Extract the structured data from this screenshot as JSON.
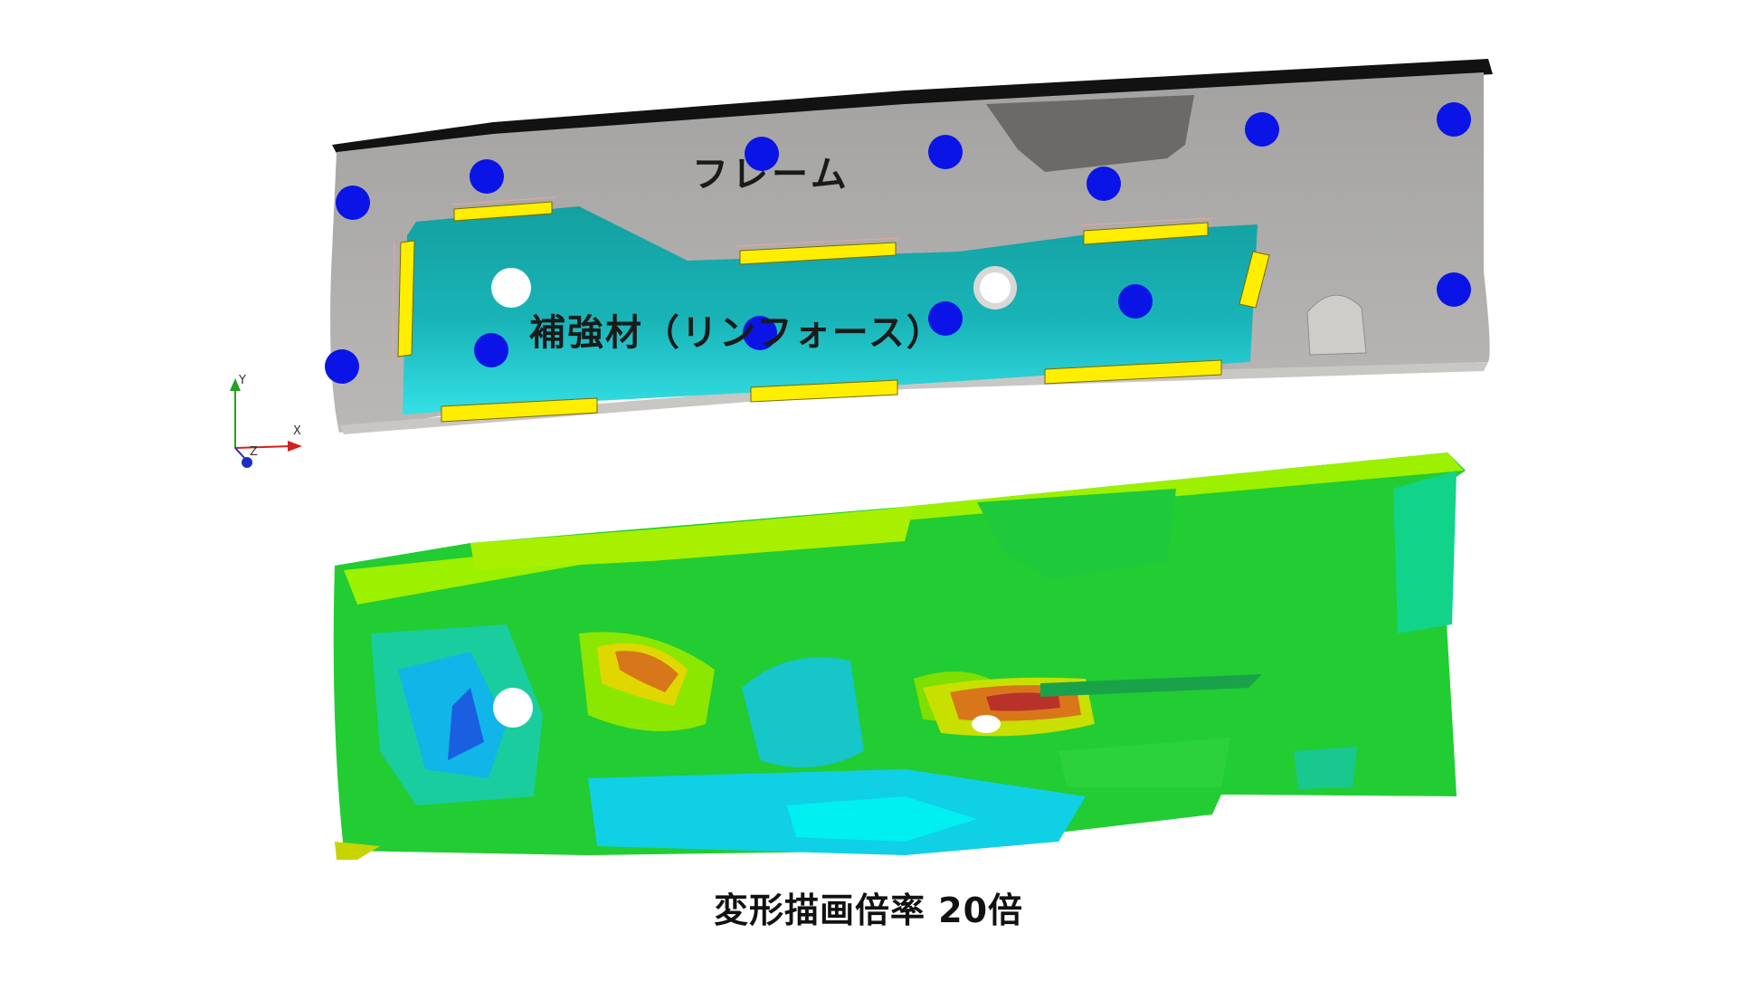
{
  "labels": {
    "frame": "フレーム",
    "reinforcement": "補強材（リンフォース）",
    "caption": "変形描画倍率 20倍"
  },
  "axes": {
    "x": "X",
    "y": "Y",
    "z": "Z"
  },
  "colors": {
    "frame_gray": "#9e9d9b",
    "frame_edge": "#111111",
    "reinforcement_teal": "#17a6a6",
    "weld_yellow": "#ffee00",
    "constraint_blue": "#0a14e6",
    "axis_x": "#d21f1f",
    "axis_y": "#22a022",
    "axis_z": "#1a2fc0"
  },
  "views": [
    {
      "name": "undeformed-model"
    },
    {
      "name": "deformed-contour"
    }
  ]
}
